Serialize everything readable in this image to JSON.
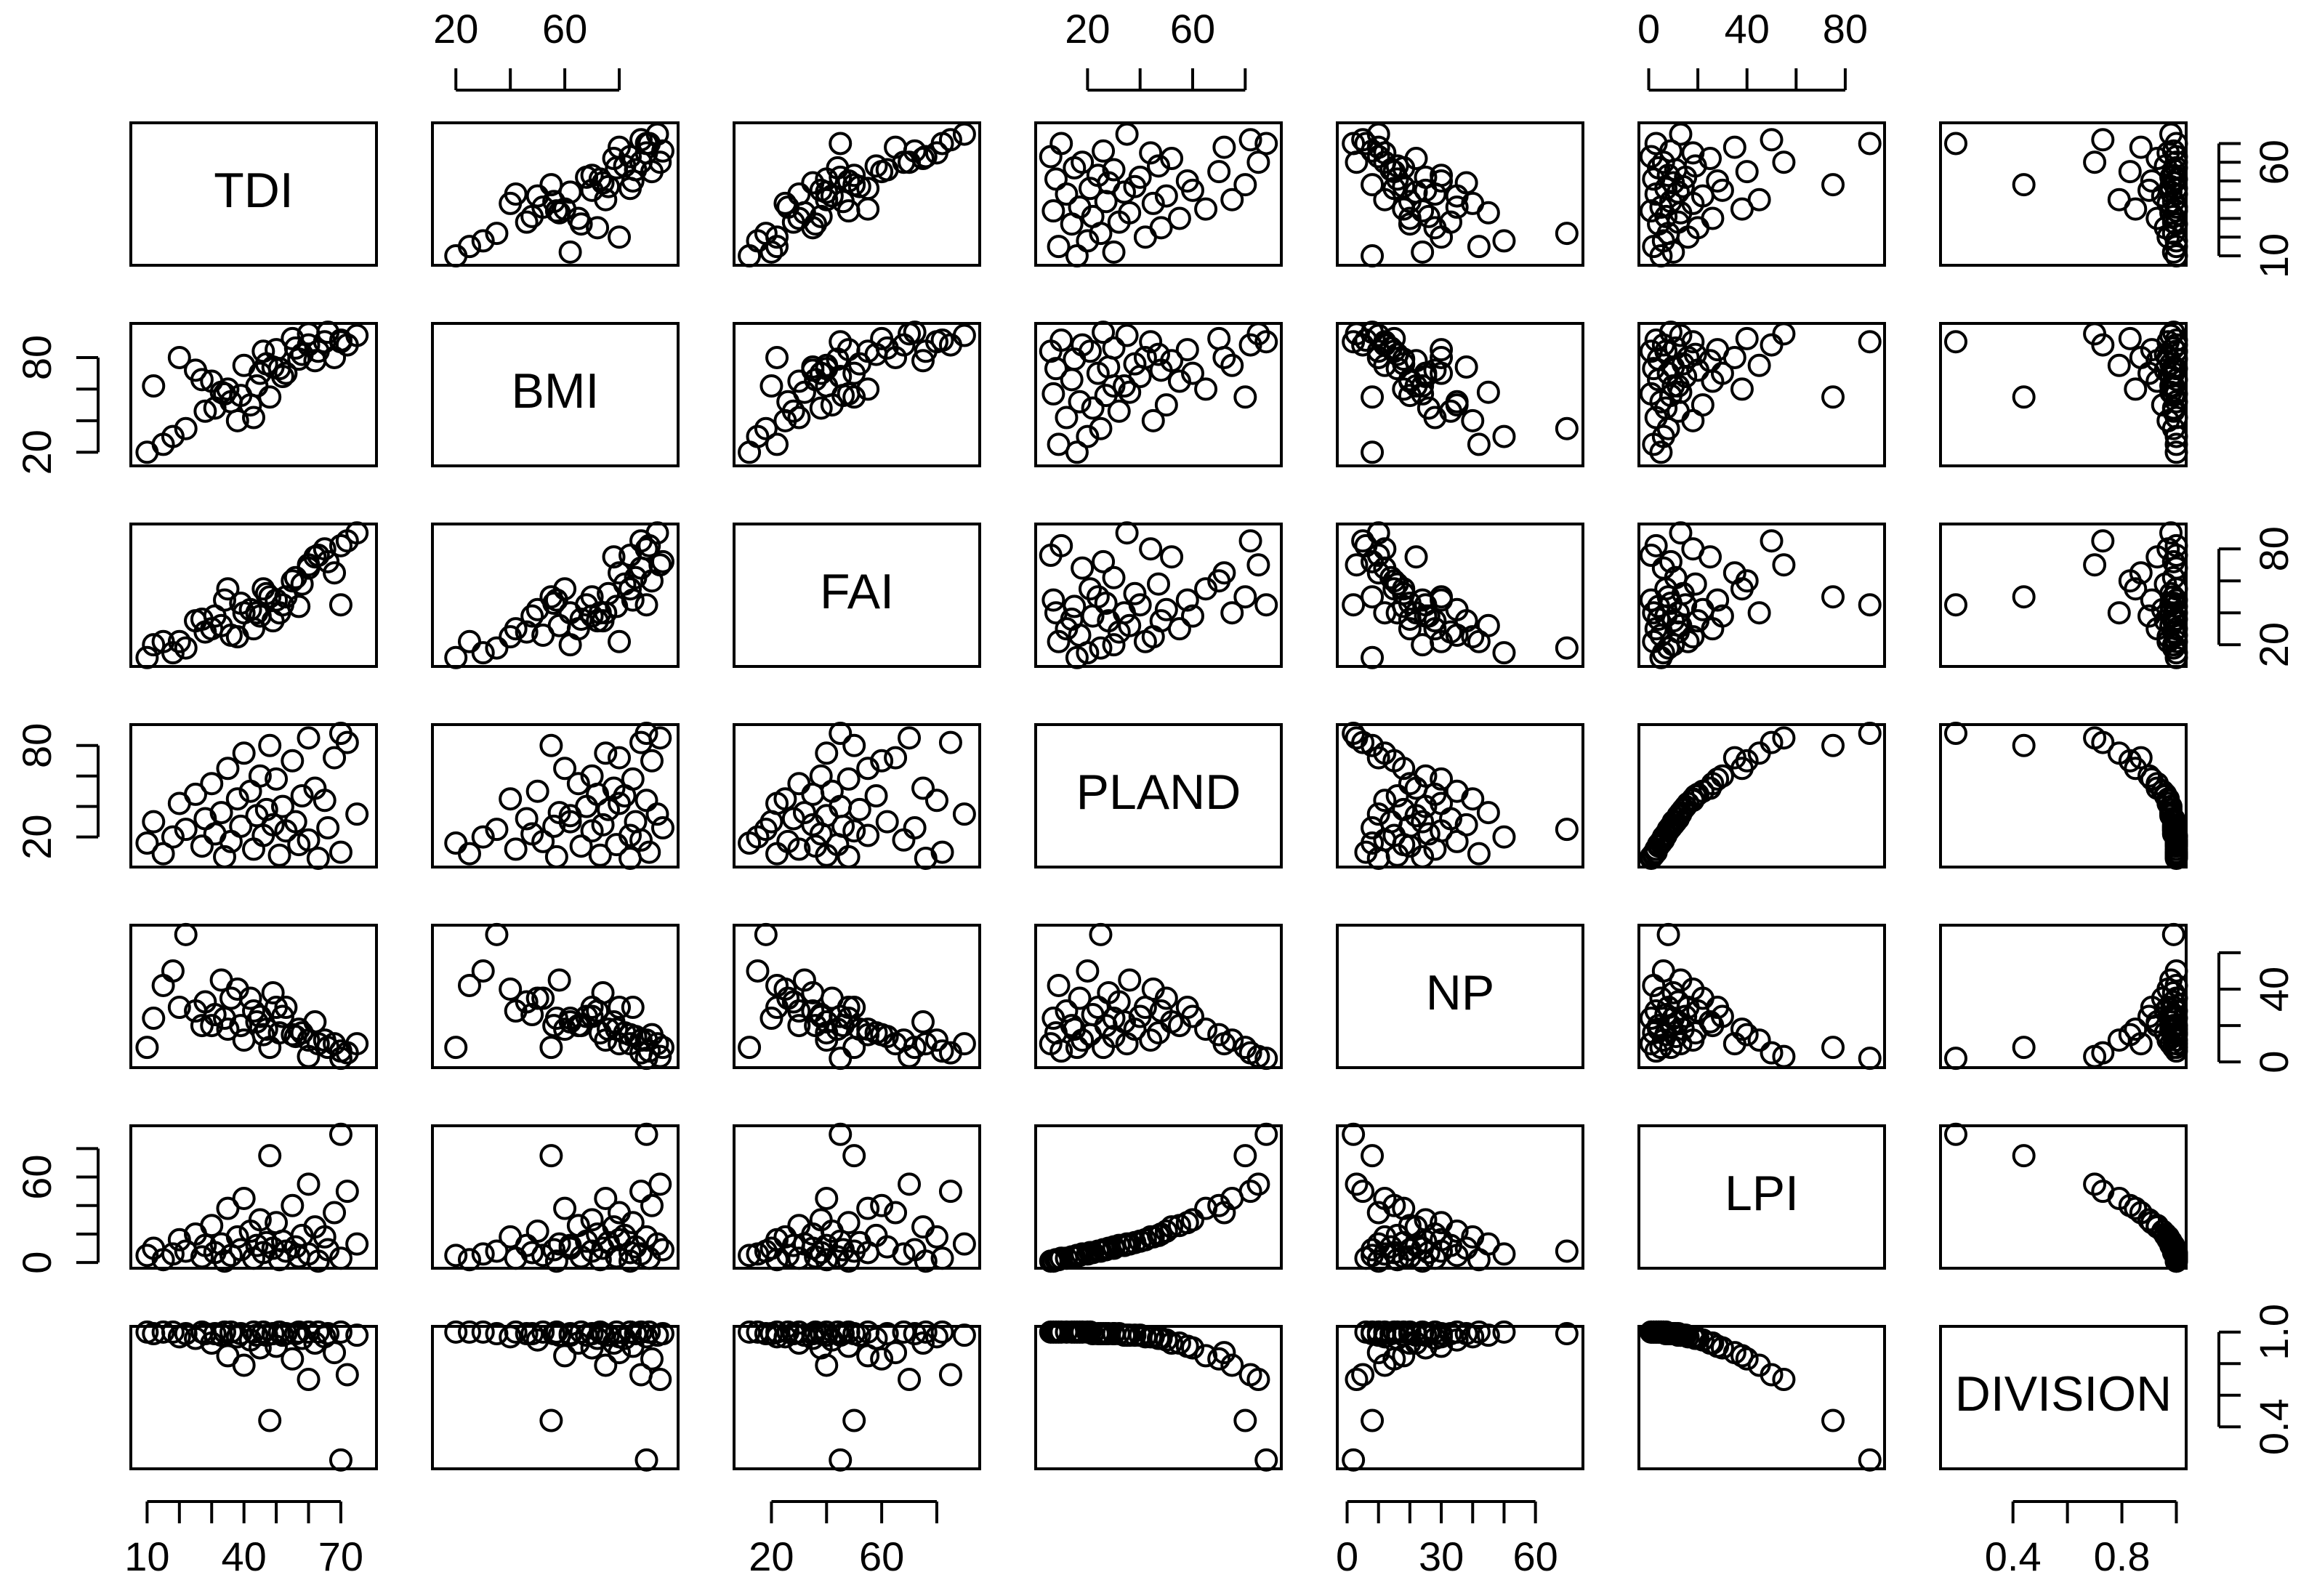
{
  "chart_data": {
    "type": "scatter-matrix",
    "variables": [
      {
        "name": "TDI",
        "lim": [
          8,
          78
        ],
        "values": [
          70,
          48,
          60,
          72,
          40,
          55,
          35,
          68,
          45,
          50,
          30,
          62,
          42,
          25,
          58,
          38,
          65,
          20,
          52,
          47,
          33,
          75,
          44,
          28,
          56,
          12,
          49,
          39,
          66,
          22,
          53,
          31,
          46,
          18,
          60,
          36,
          10,
          57,
          27,
          43,
          70,
          15,
          51,
          34,
          63
        ],
        "xticks": [
          10,
          {
            "value": 20,
            "label": null
          },
          {
            "value": 30,
            "label": null
          },
          40,
          {
            "value": 50,
            "label": null
          },
          {
            "value": 60,
            "label": null
          },
          70
        ],
        "yticks": [
          10,
          {
            "value": 20,
            "label": null
          },
          {
            "value": 30,
            "label": null
          },
          {
            "value": 40,
            "label": null
          },
          {
            "value": 50,
            "label": null
          },
          60,
          {
            "value": 70,
            "label": null
          }
        ]
      },
      {
        "name": "BMI",
        "lim": [
          15,
          98
        ],
        "values": [
          90,
          55,
          95,
          88,
          75,
          92,
          60,
          80,
          70,
          85,
          65,
          78,
          50,
          72,
          82,
          40,
          90,
          80,
          68,
          76,
          58,
          94,
          62,
          46,
          86,
          62,
          74,
          56,
          96,
          35,
          70,
          48,
          84,
          30,
          88,
          52,
          20,
          79,
          66,
          42,
          91,
          25,
          73,
          57,
          84
        ],
        "xticks": [
          20,
          {
            "value": 40,
            "label": null
          },
          60,
          {
            "value": 80,
            "label": null
          }
        ],
        "yticks": [
          20,
          {
            "value": 40,
            "label": null
          },
          {
            "value": 60,
            "label": null
          },
          80
        ]
      },
      {
        "name": "FAI",
        "lim": [
          10,
          92
        ],
        "values": [
          45,
          50,
          70,
          85,
          40,
          60,
          55,
          65,
          38,
          48,
          30,
          75,
          42,
          35,
          58,
          25,
          80,
          22,
          45,
          52,
          32,
          90,
          40,
          28,
          62,
          20,
          35,
          46,
          72,
          18,
          50,
          38,
          55,
          15,
          68,
          26,
          12,
          44,
          36,
          30,
          82,
          22,
          40,
          48,
          76
        ],
        "xticks": [
          20,
          {
            "value": 40,
            "label": null
          },
          60,
          {
            "value": 80,
            "label": null
          }
        ],
        "yticks": [
          20,
          {
            "value": 40,
            "label": null
          },
          {
            "value": 60,
            "label": null
          },
          80
        ]
      },
      {
        "name": "PLAND",
        "lim": [
          4,
          90
        ],
        "values": [
          88,
          80,
          85,
          82,
          75,
          70,
          65,
          72,
          60,
          58,
          55,
          52,
          50,
          48,
          47,
          45,
          44,
          42,
          40,
          38,
          36,
          35,
          34,
          32,
          30,
          30,
          28,
          27,
          26,
          25,
          24,
          22,
          21,
          20,
          18,
          17,
          16,
          15,
          14,
          12,
          10,
          9,
          8,
          7,
          6
        ],
        "xticks": [
          20,
          {
            "value": 40,
            "label": null
          },
          60,
          {
            "value": 80,
            "label": null
          }
        ],
        "yticks": [
          20,
          {
            "value": 40,
            "label": null
          },
          {
            "value": 60,
            "label": null
          },
          80
        ]
      },
      {
        "name": "NP",
        "lim": [
          0,
          72
        ],
        "values": [
          2,
          8,
          3,
          5,
          12,
          15,
          18,
          10,
          25,
          30,
          20,
          22,
          35,
          28,
          16,
          40,
          12,
          30,
          25,
          18,
          45,
          10,
          22,
          33,
          14,
          24,
          38,
          20,
          8,
          70,
          30,
          26,
          15,
          50,
          12,
          35,
          8,
          18,
          20,
          28,
          6,
          42,
          16,
          24,
          10
        ],
        "xticks": [
          0,
          {
            "value": 10,
            "label": null
          },
          {
            "value": 20,
            "label": null
          },
          30,
          {
            "value": 40,
            "label": null
          },
          {
            "value": 50,
            "label": null
          },
          60
        ],
        "yticks": [
          0,
          {
            "value": 20,
            "label": null
          },
          40,
          {
            "value": 60,
            "label": null
          }
        ]
      },
      {
        "name": "LPI",
        "lim": [
          0,
          92
        ],
        "values": [
          90,
          75,
          55,
          50,
          45,
          40,
          38,
          35,
          30,
          28,
          26,
          25,
          22,
          20,
          19,
          18,
          18,
          16,
          15,
          14,
          13,
          13,
          12,
          12,
          11,
          10,
          10,
          9,
          9,
          8,
          8,
          7,
          7,
          6,
          6,
          5,
          5,
          4,
          4,
          3,
          3,
          2,
          2,
          1,
          1
        ],
        "xticks": [
          0,
          {
            "value": 20,
            "label": null
          },
          40,
          {
            "value": 60,
            "label": null
          },
          80
        ],
        "yticks": [
          0,
          {
            "value": 20,
            "label": null
          },
          {
            "value": 40,
            "label": null
          },
          60,
          {
            "value": 80,
            "label": null
          }
        ]
      },
      {
        "name": "DIVISION",
        "lim": [
          0.17,
          1
        ],
        "values": [
          0.19,
          0.44,
          0.7,
          0.73,
          0.79,
          0.83,
          0.85,
          0.87,
          0.9,
          0.91,
          0.93,
          0.93,
          0.95,
          0.96,
          0.96,
          0.97,
          0.97,
          0.97,
          0.98,
          0.98,
          0.98,
          0.98,
          0.98,
          0.99,
          0.99,
          0.99,
          0.99,
          0.99,
          0.99,
          0.99,
          0.99,
          0.99,
          1,
          1,
          1,
          1,
          1,
          1,
          1,
          1,
          1,
          1,
          1,
          1,
          1
        ],
        "xticks": [
          0.4,
          {
            "value": 0.6,
            "label": null
          },
          0.8,
          {
            "value": 1,
            "label": null
          }
        ],
        "yticks": [
          0.4,
          {
            "value": 0.6,
            "label": null
          },
          {
            "value": 0.8,
            "label": null
          },
          {
            "value": 1,
            "label": "1.0"
          }
        ]
      }
    ]
  }
}
